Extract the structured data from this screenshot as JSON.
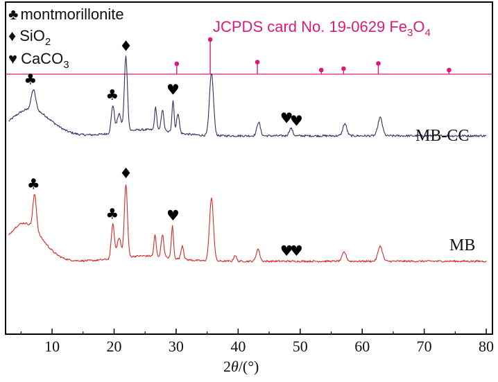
{
  "chart_data": {
    "type": "line",
    "xlabel_prefix": "2",
    "xlabel_theta": "θ",
    "xlabel_suffix": "/(°)",
    "xlim": [
      2.5,
      81
    ],
    "xticks": [
      10,
      20,
      30,
      40,
      50,
      60,
      70,
      80
    ],
    "ylabel": "",
    "grid": false,
    "legend": {
      "position": "top-left",
      "entries": [
        {
          "symbol": "♣",
          "text": "montmorillonite"
        },
        {
          "symbol": "♦",
          "text": "SiO",
          "sub": "2",
          "tail": ""
        },
        {
          "symbol": "♥",
          "text": "CaCO",
          "sub": "3",
          "tail": ""
        }
      ]
    },
    "reference": {
      "label_main": "JCPDS card No. 19-0629 Fe",
      "label_sub1": "3",
      "label_mid": "O",
      "label_sub2": "4",
      "color": "#d81b7a",
      "peaks": [
        {
          "x": 30.1,
          "intensity": 30
        },
        {
          "x": 35.5,
          "intensity": 100
        },
        {
          "x": 43.1,
          "intensity": 35
        },
        {
          "x": 53.4,
          "intensity": 12
        },
        {
          "x": 57.0,
          "intensity": 16
        },
        {
          "x": 62.6,
          "intensity": 31
        },
        {
          "x": 74.0,
          "intensity": 12
        }
      ]
    },
    "series": [
      {
        "name": "MB-CC",
        "color": "#2d2f63",
        "baseline": 0.31,
        "noise": 0.014,
        "peaks": [
          {
            "x": 7.0,
            "h": 0.26,
            "w": 0.5
          },
          {
            "x": 19.8,
            "h": 0.36,
            "w": 0.35
          },
          {
            "x": 20.8,
            "h": 0.24,
            "w": 0.45
          },
          {
            "x": 21.9,
            "h": 0.98,
            "w": 0.35
          },
          {
            "x": 26.7,
            "h": 0.3,
            "w": 0.25
          },
          {
            "x": 27.8,
            "h": 0.28,
            "w": 0.3
          },
          {
            "x": 29.5,
            "h": 0.42,
            "w": 0.25
          },
          {
            "x": 30.3,
            "h": 0.26,
            "w": 0.3
          },
          {
            "x": 35.7,
            "h": 0.82,
            "w": 0.45
          },
          {
            "x": 43.3,
            "h": 0.18,
            "w": 0.4
          },
          {
            "x": 48.5,
            "h": 0.1,
            "w": 0.4
          },
          {
            "x": 57.2,
            "h": 0.16,
            "w": 0.45
          },
          {
            "x": 62.9,
            "h": 0.24,
            "w": 0.5
          }
        ],
        "broad": [
          {
            "x": 6.5,
            "h": 0.35,
            "w": 4.5
          },
          {
            "x": 25,
            "h": 0.08,
            "w": 6
          }
        ]
      },
      {
        "name": "MB",
        "color": "#d62728",
        "baseline": 0.12,
        "noise": 0.012,
        "peaks": [
          {
            "x": 7.2,
            "h": 0.46,
            "w": 0.4
          },
          {
            "x": 19.8,
            "h": 0.45,
            "w": 0.35
          },
          {
            "x": 20.8,
            "h": 0.27,
            "w": 0.45
          },
          {
            "x": 21.9,
            "h": 0.96,
            "w": 0.35
          },
          {
            "x": 26.6,
            "h": 0.28,
            "w": 0.25
          },
          {
            "x": 27.8,
            "h": 0.3,
            "w": 0.3
          },
          {
            "x": 29.4,
            "h": 0.42,
            "w": 0.25
          },
          {
            "x": 31.0,
            "h": 0.18,
            "w": 0.3
          },
          {
            "x": 35.7,
            "h": 0.82,
            "w": 0.45
          },
          {
            "x": 39.5,
            "h": 0.08,
            "w": 0.3
          },
          {
            "x": 43.2,
            "h": 0.16,
            "w": 0.4
          },
          {
            "x": 57.1,
            "h": 0.12,
            "w": 0.45
          },
          {
            "x": 62.9,
            "h": 0.2,
            "w": 0.5
          }
        ],
        "broad": [
          {
            "x": 5.5,
            "h": 0.5,
            "w": 4
          },
          {
            "x": 25,
            "h": 0.07,
            "w": 6
          }
        ]
      }
    ],
    "phase_markers": [
      {
        "symbol": "♣",
        "x": 6.5,
        "series": "MB-CC"
      },
      {
        "symbol": "♣",
        "x": 19.7,
        "series": "MB-CC"
      },
      {
        "symbol": "♦",
        "x": 21.9,
        "series": "MB-CC"
      },
      {
        "symbol": "♥",
        "x": 29.5,
        "series": "MB-CC"
      },
      {
        "symbol": "♥",
        "x": 47.8,
        "series": "MB-CC"
      },
      {
        "symbol": "♥",
        "x": 49.4,
        "series": "MB-CC"
      },
      {
        "symbol": "♣",
        "x": 7.0,
        "series": "MB"
      },
      {
        "symbol": "♣",
        "x": 19.7,
        "series": "MB"
      },
      {
        "symbol": "♦",
        "x": 21.9,
        "series": "MB"
      },
      {
        "symbol": "♥",
        "x": 29.5,
        "series": "MB"
      },
      {
        "symbol": "♥",
        "x": 47.8,
        "series": "MB"
      },
      {
        "symbol": "♥",
        "x": 49.4,
        "series": "MB"
      }
    ]
  }
}
